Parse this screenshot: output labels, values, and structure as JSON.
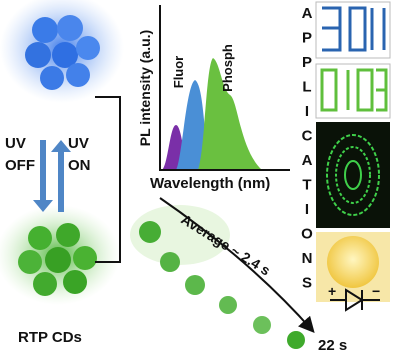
{
  "spectrum": {
    "y_label": "PL intensity (a.u.)",
    "x_label": "Wavelength (nm)",
    "fluor": "Fluor",
    "phosph": "Phosph"
  },
  "states": {
    "uv_off": [
      "UV",
      "OFF"
    ],
    "uv_on": [
      "UV",
      "ON"
    ],
    "label": "RTP CDs"
  },
  "decay": {
    "label": "Average ~ 2.4 s",
    "end": "22 s"
  },
  "applications": [
    "A",
    "P",
    "P",
    "L",
    "I",
    "C",
    "A",
    "T",
    "I",
    "O",
    "N",
    "S"
  ]
}
